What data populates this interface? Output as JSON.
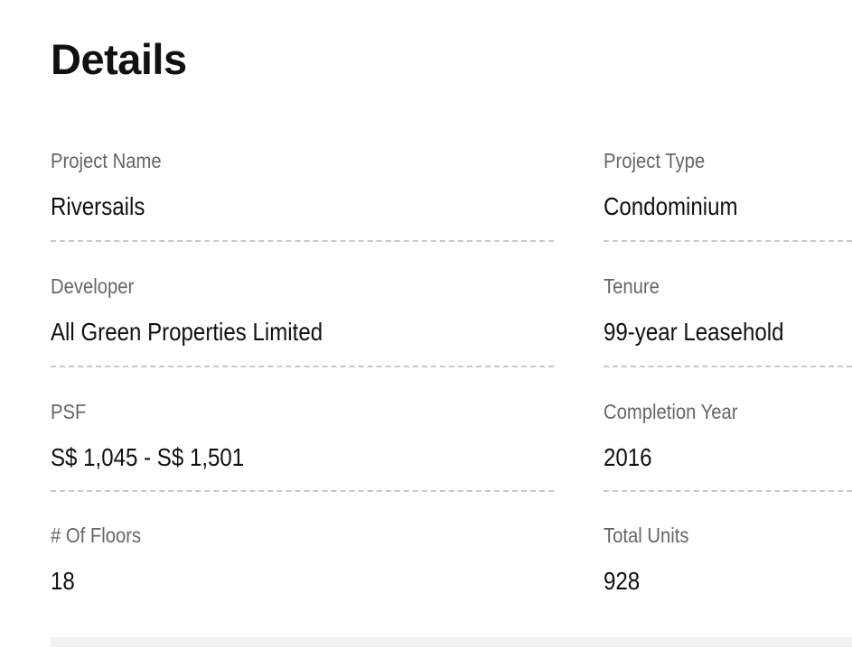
{
  "title": "Details",
  "fields": [
    {
      "label": "Project Name",
      "value": "Riversails"
    },
    {
      "label": "Project Type",
      "value": "Condominium"
    },
    {
      "label": "Developer",
      "value": "All Green Properties Limited"
    },
    {
      "label": "Tenure",
      "value": "99-year Leasehold"
    },
    {
      "label": "PSF",
      "value": "S$ 1,045 - S$ 1,501"
    },
    {
      "label": "Completion Year",
      "value": "2016"
    },
    {
      "label": "# Of Floors",
      "value": "18"
    },
    {
      "label": "Total Units",
      "value": "928"
    }
  ]
}
